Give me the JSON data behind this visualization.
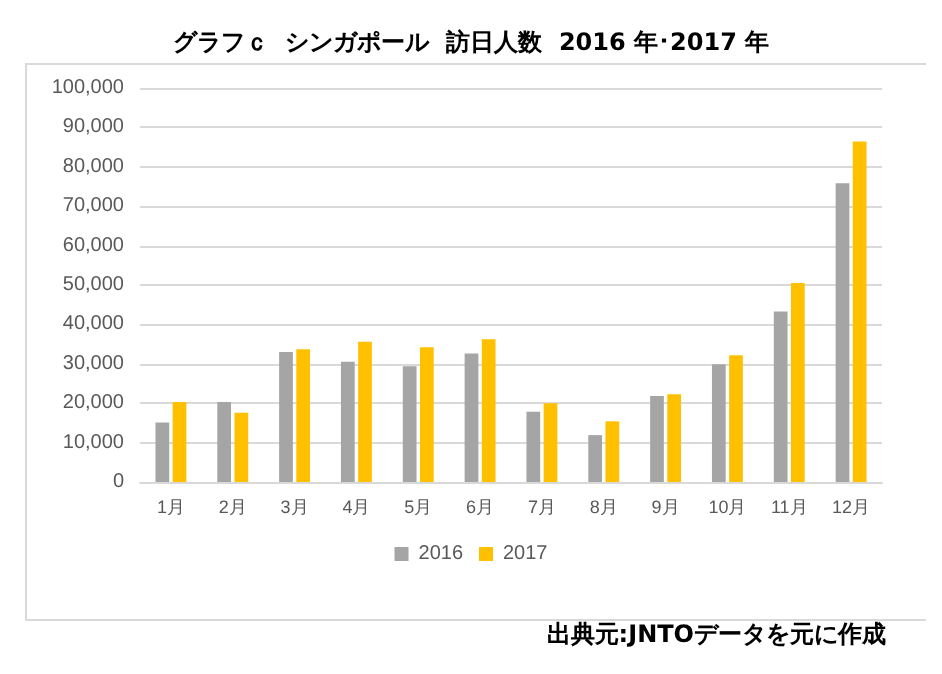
{
  "chart_data": {
    "type": "bar",
    "title": "グラフｃ  シンガポール  訪日人数  2016 年･2017 年",
    "categories": [
      "1月",
      "2月",
      "3月",
      "4月",
      "5月",
      "6月",
      "7月",
      "8月",
      "9月",
      "10月",
      "11月",
      "12月"
    ],
    "series": [
      {
        "name": "2016",
        "color": "#a5a5a5",
        "values": [
          15100,
          20300,
          33000,
          30500,
          29400,
          32600,
          17800,
          11900,
          21800,
          29900,
          43300,
          75800
        ]
      },
      {
        "name": "2017",
        "color": "#ffc000",
        "values": [
          20300,
          17600,
          33700,
          35600,
          34200,
          36200,
          20000,
          15400,
          22300,
          32200,
          50500,
          86400
        ]
      }
    ],
    "ylim": [
      0,
      100000
    ],
    "yticks": [
      0,
      {
        "value": 10000,
        "label": "10,000"
      },
      {
        "value": 20000,
        "label": "20,000"
      },
      {
        "value": 30000,
        "label": "30,000"
      },
      {
        "value": 40000,
        "label": "40,000"
      },
      {
        "value": 50000,
        "label": "50,000"
      },
      {
        "value": 60000,
        "label": "60,000"
      },
      {
        "value": 70000,
        "label": "70,000"
      },
      {
        "value": 80000,
        "label": "80,000"
      },
      {
        "value": 90000,
        "label": "90,000"
      },
      {
        "value": 100000,
        "label": "100,000"
      }
    ],
    "grid": "y",
    "legend": "bottom",
    "annotations": [
      "出典元:JNTOデータを元に作成"
    ]
  }
}
